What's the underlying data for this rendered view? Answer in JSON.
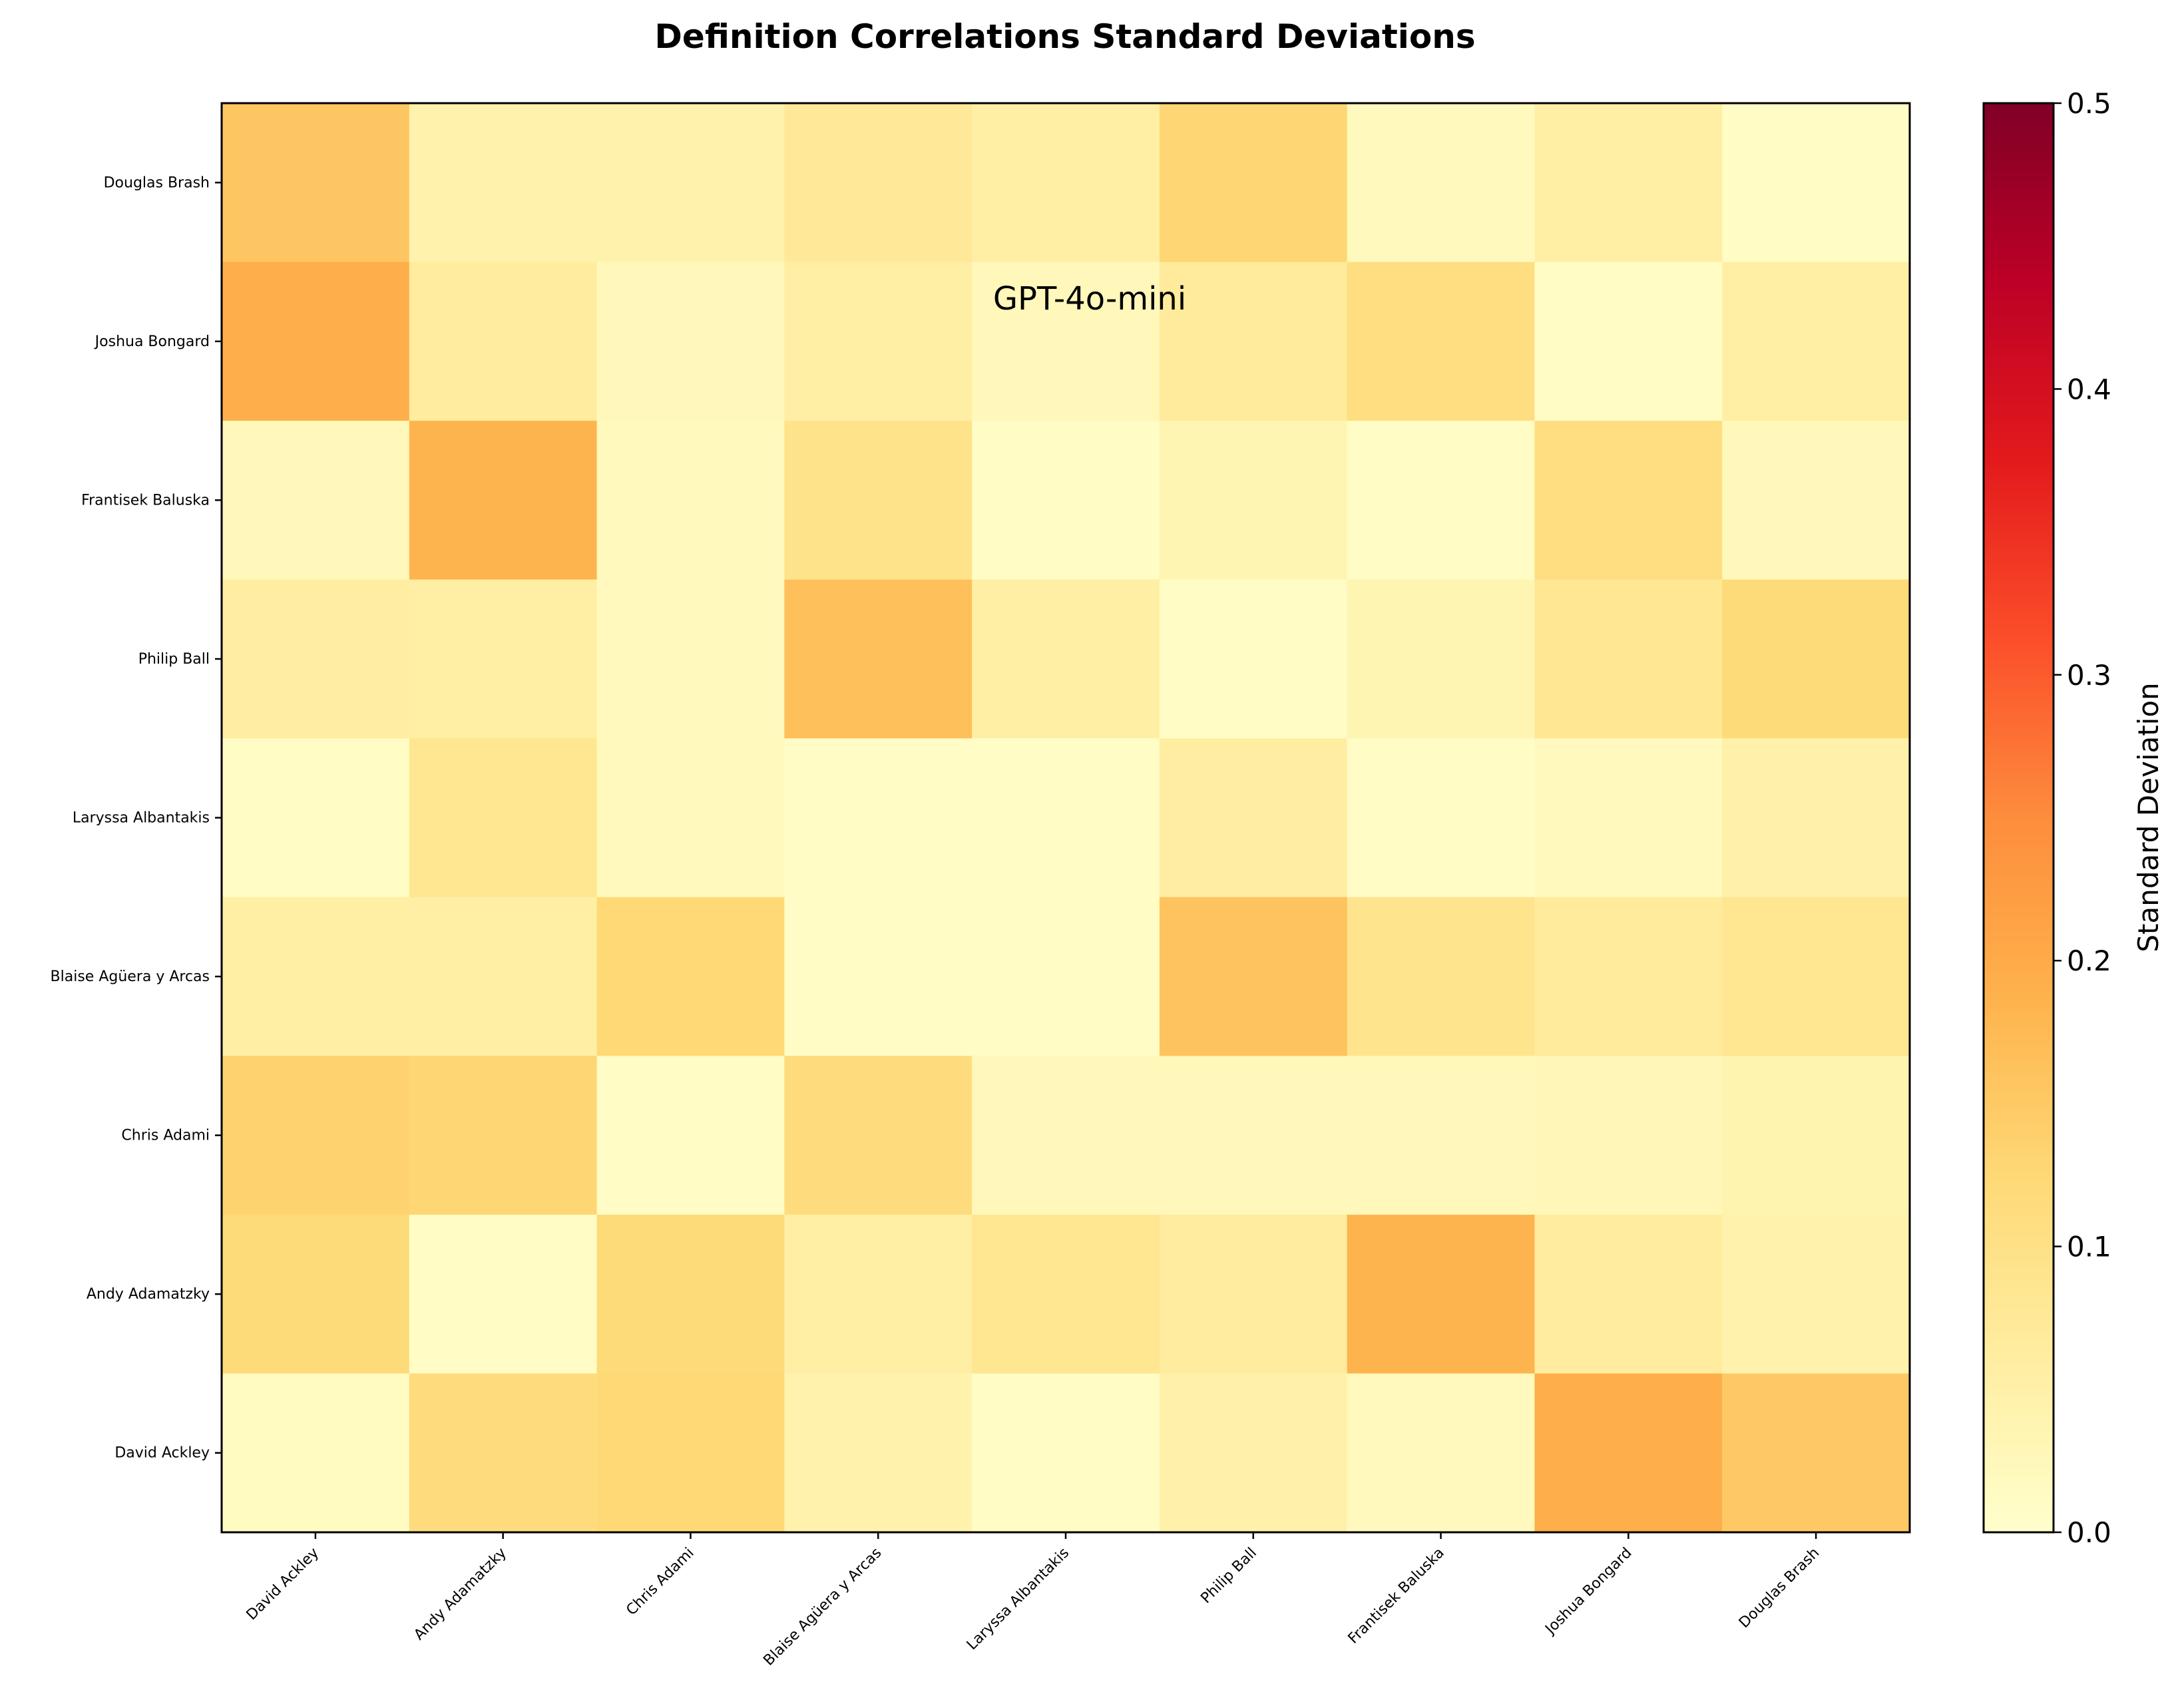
{
  "chart_data": {
    "type": "heatmap",
    "title": "Definition Correlations Standard Deviations",
    "annotation": "GPT-4o-mini",
    "x_categories": [
      "David Ackley",
      "Andy Adamatzky",
      "Chris Adami",
      "Blaise Agüera y Arcas",
      "Laryssa Albantakis",
      "Philip Ball",
      "Frantisek Baluska",
      "Joshua Bongard",
      "Douglas Brash"
    ],
    "y_categories_top_to_bottom": [
      "Douglas Brash",
      "Joshua Bongard",
      "Frantisek Baluska",
      "Philip Ball",
      "Laryssa Albantakis",
      "Blaise Agüera y Arcas",
      "Chris Adami",
      "Andy Adamatzky",
      "David Ackley"
    ],
    "values": [
      [
        0.155,
        0.045,
        0.045,
        0.075,
        0.055,
        0.13,
        0.02,
        0.055,
        0.01
      ],
      [
        0.195,
        0.065,
        0.025,
        0.055,
        0.025,
        0.07,
        0.11,
        0.01,
        0.055
      ],
      [
        0.025,
        0.185,
        0.02,
        0.095,
        0.01,
        0.035,
        0.01,
        0.11,
        0.025
      ],
      [
        0.06,
        0.055,
        0.02,
        0.165,
        0.055,
        0.01,
        0.035,
        0.08,
        0.12
      ],
      [
        0.01,
        0.085,
        0.02,
        0.01,
        0.01,
        0.06,
        0.01,
        0.02,
        0.05
      ],
      [
        0.055,
        0.055,
        0.125,
        0.01,
        0.01,
        0.16,
        0.09,
        0.07,
        0.085
      ],
      [
        0.135,
        0.13,
        0.01,
        0.115,
        0.025,
        0.025,
        0.025,
        0.03,
        0.04
      ],
      [
        0.12,
        0.01,
        0.12,
        0.055,
        0.085,
        0.065,
        0.185,
        0.065,
        0.045
      ],
      [
        0.015,
        0.115,
        0.125,
        0.045,
        0.01,
        0.05,
        0.02,
        0.195,
        0.15
      ]
    ],
    "colorbar": {
      "label": "Standard Deviation",
      "range": [
        0.0,
        0.5
      ],
      "ticks": [
        "0.0",
        "0.1",
        "0.2",
        "0.3",
        "0.4",
        "0.5"
      ],
      "colormap": "YlOrRd",
      "stops": [
        "#ffffcc",
        "#ffeda0",
        "#fed976",
        "#feb24c",
        "#fd8d3c",
        "#fc4e2a",
        "#e31a1c",
        "#bd0026",
        "#800026"
      ]
    },
    "grid": false
  }
}
